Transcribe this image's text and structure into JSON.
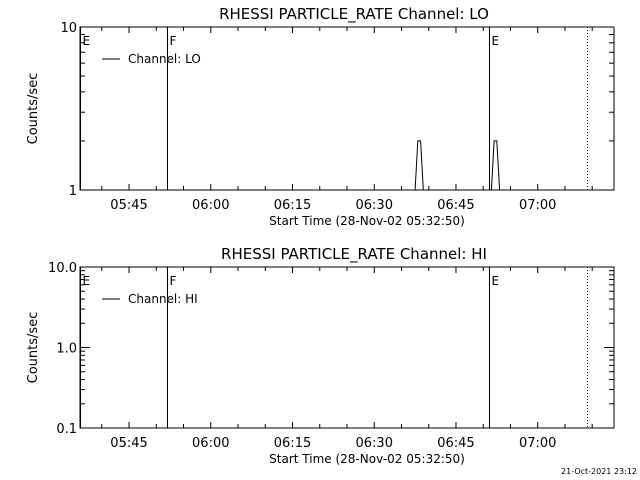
{
  "chart_data": [
    {
      "type": "line",
      "title": "RHESSI PARTICLE_RATE Channel: LO",
      "xlabel": "Start Time (28-Nov-02 05:32:50)",
      "ylabel": "Counts/sec",
      "x_ticks": [
        "05:45",
        "06:00",
        "06:15",
        "06:30",
        "06:45",
        "07:00"
      ],
      "xlim": [
        "05:36",
        "07:14"
      ],
      "y_scale": "log",
      "ylim": [
        1,
        10
      ],
      "y_ticks": [
        "1",
        "10"
      ],
      "legend": "top-left",
      "series": [
        {
          "name": "Channel: LO",
          "x": [
            "06:37:30",
            "06:38:00",
            "06:38:30",
            "06:39:00",
            "06:51:30",
            "06:52:00",
            "06:52:30",
            "06:53:00"
          ],
          "values": [
            1,
            2,
            2,
            1,
            1,
            2,
            2,
            1
          ]
        }
      ],
      "markers": [
        {
          "label": "E",
          "x": "05:36",
          "style": "solid"
        },
        {
          "label": "F",
          "x": "05:52",
          "style": "solid"
        },
        {
          "label": "",
          "x": "05:52",
          "style": "dotted"
        },
        {
          "label": "E",
          "x": "06:51",
          "style": "solid"
        },
        {
          "label": "",
          "x": "06:51",
          "style": "dotted"
        },
        {
          "label": "",
          "x": "07:09",
          "style": "dotted"
        }
      ]
    },
    {
      "type": "line",
      "title": "RHESSI PARTICLE_RATE Channel: HI",
      "xlabel": "Start Time (28-Nov-02 05:32:50)",
      "ylabel": "Counts/sec",
      "x_ticks": [
        "05:45",
        "06:00",
        "06:15",
        "06:30",
        "06:45",
        "07:00"
      ],
      "xlim": [
        "05:36",
        "07:14"
      ],
      "y_scale": "log",
      "ylim": [
        0.1,
        10
      ],
      "y_ticks": [
        "0.1",
        "1.0",
        "10.0"
      ],
      "legend": "top-left",
      "series": [
        {
          "name": "Channel: HI",
          "x": [],
          "values": []
        }
      ],
      "markers": [
        {
          "label": "E",
          "x": "05:36",
          "style": "solid"
        },
        {
          "label": "F",
          "x": "05:52",
          "style": "solid"
        },
        {
          "label": "",
          "x": "05:52",
          "style": "dotted"
        },
        {
          "label": "E",
          "x": "06:51",
          "style": "solid"
        },
        {
          "label": "",
          "x": "06:51",
          "style": "dotted"
        },
        {
          "label": "",
          "x": "07:09",
          "style": "dotted"
        }
      ]
    }
  ],
  "footer": {
    "timestamp": "21-Oct-2021 23:12"
  }
}
